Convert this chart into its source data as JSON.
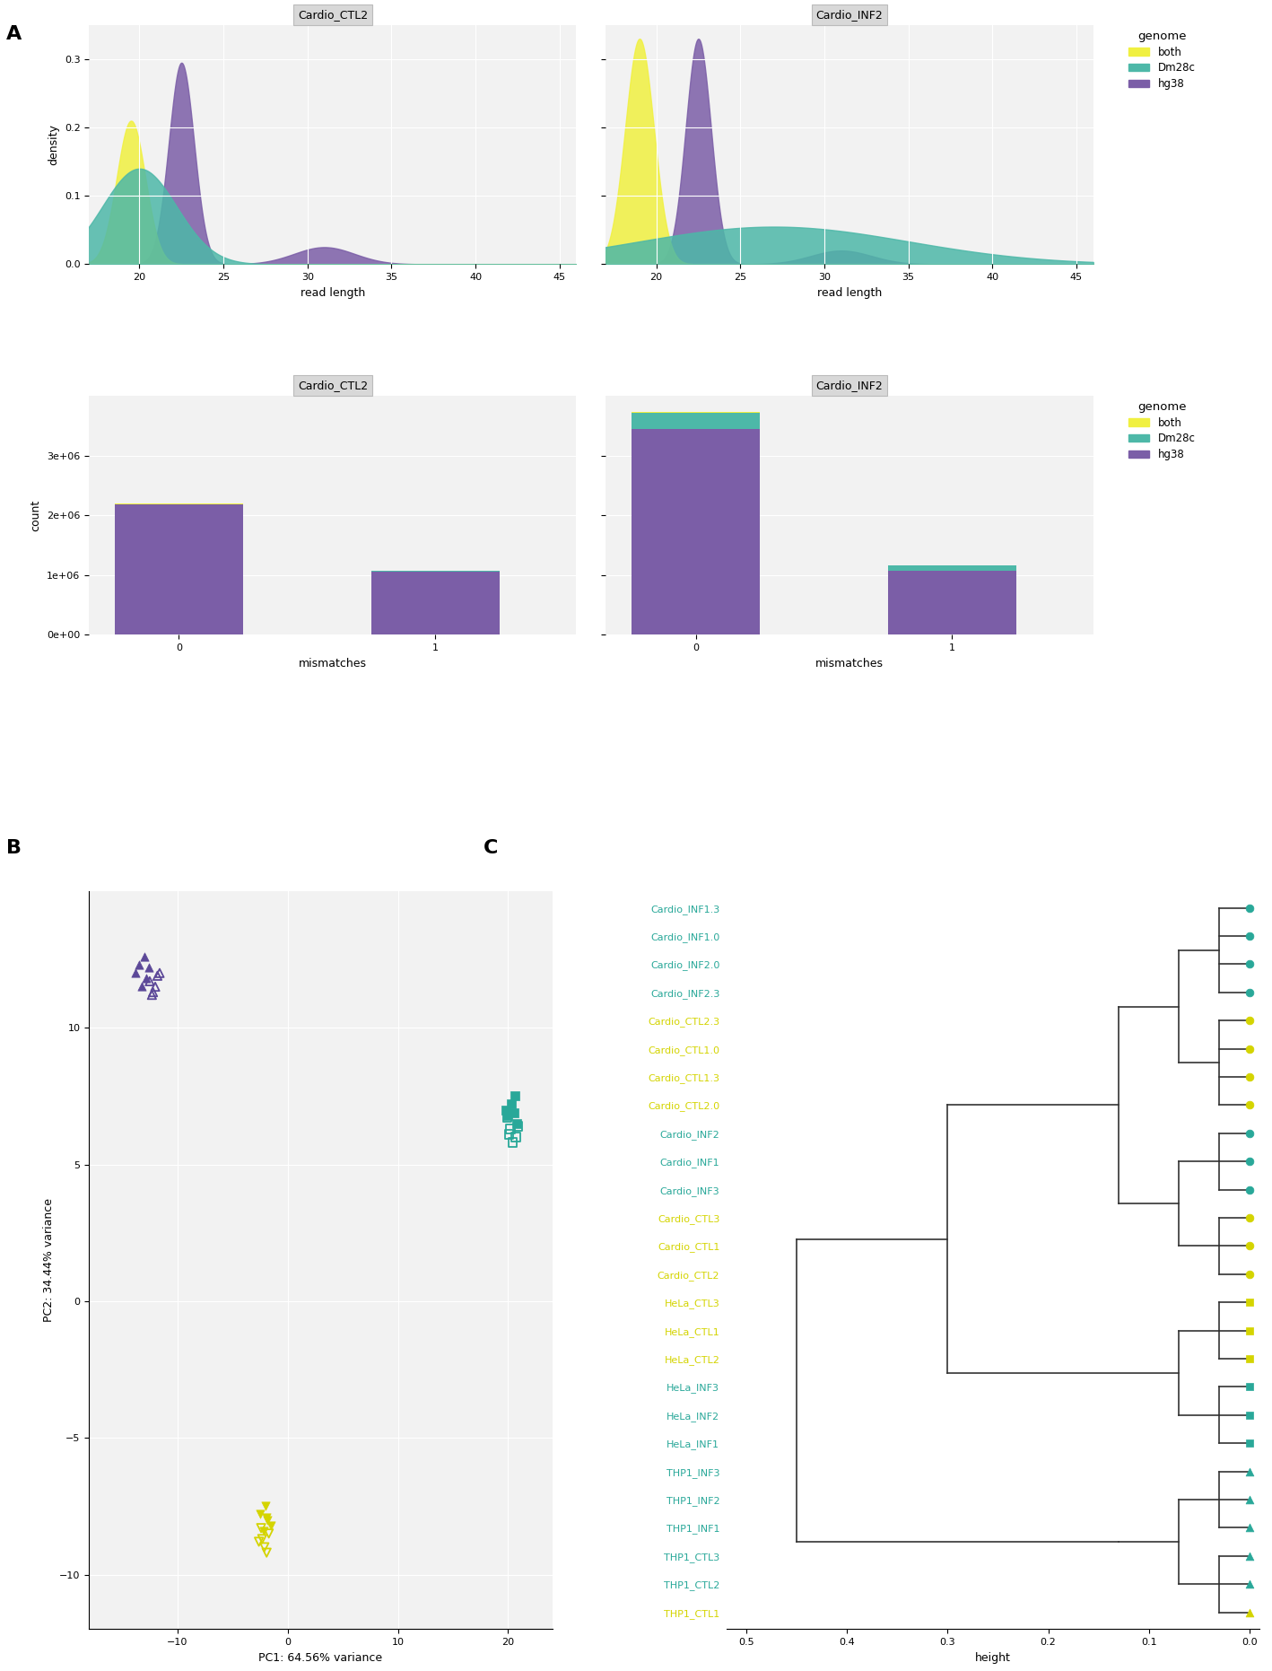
{
  "panel_A_density_title1": "Cardio_CTL2",
  "panel_A_density_title2": "Cardio_INF2",
  "panel_A_bar_title1": "Cardio_CTL2",
  "panel_A_bar_title2": "Cardio_INF2",
  "density_xlabel": "read length",
  "density_ylabel": "density",
  "bar_xlabel": "mismatches",
  "bar_ylabel": "count",
  "genome_legend_title": "genome",
  "genome_labels": [
    "both",
    "Dm28c",
    "hg38"
  ],
  "genome_colors_density": [
    "#f0f040",
    "#4db8a8",
    "#7b5ea7"
  ],
  "genome_colors_bar": [
    "#f0f040",
    "#4db8a8",
    "#7b5ea7"
  ],
  "bg_color": "#f2f2f2",
  "panel_label_A": "A",
  "panel_label_B": "B",
  "panel_label_C": "C",
  "pca_xlabel": "PC1: 64.56% variance",
  "pca_ylabel": "PC2: 34.44% variance",
  "dendro_labels": [
    "Cardio_INF1.3",
    "Cardio_INF1.0",
    "Cardio_INF2.0",
    "Cardio_INF2.3",
    "Cardio_CTL2.3",
    "Cardio_CTL1.0",
    "Cardio_CTL1.3",
    "Cardio_CTL2.0",
    "Cardio_INF2",
    "Cardio_INF1",
    "Cardio_INF3",
    "Cardio_CTL3",
    "Cardio_CTL1",
    "Cardio_CTL2",
    "HeLa_CTL3",
    "HeLa_CTL1",
    "HeLa_CTL2",
    "HeLa_INF3",
    "HeLa_INF2",
    "HeLa_INF1",
    "THP1_INF3",
    "THP1_INF2",
    "THP1_INF1",
    "THP1_CTL3",
    "THP1_CTL2",
    "THP1_CTL1"
  ],
  "dendro_dot_colors": [
    "#29a899",
    "#29a899",
    "#29a899",
    "#29a899",
    "#d4d400",
    "#d4d400",
    "#d4d400",
    "#d4d400",
    "#29a899",
    "#29a899",
    "#29a899",
    "#d4d400",
    "#d4d400",
    "#d4d400",
    "#d4d400",
    "#d4d400",
    "#d4d400",
    "#29a899",
    "#29a899",
    "#29a899",
    "#29a899",
    "#29a899",
    "#29a899",
    "#29a899",
    "#29a899",
    "#d4d400"
  ],
  "dendro_dot_shapes": [
    "o",
    "o",
    "o",
    "o",
    "o",
    "o",
    "o",
    "o",
    "o",
    "o",
    "o",
    "o",
    "o",
    "o",
    "s",
    "s",
    "s",
    "s",
    "s",
    "s",
    "^",
    "^",
    "^",
    "^",
    "^",
    "^"
  ]
}
